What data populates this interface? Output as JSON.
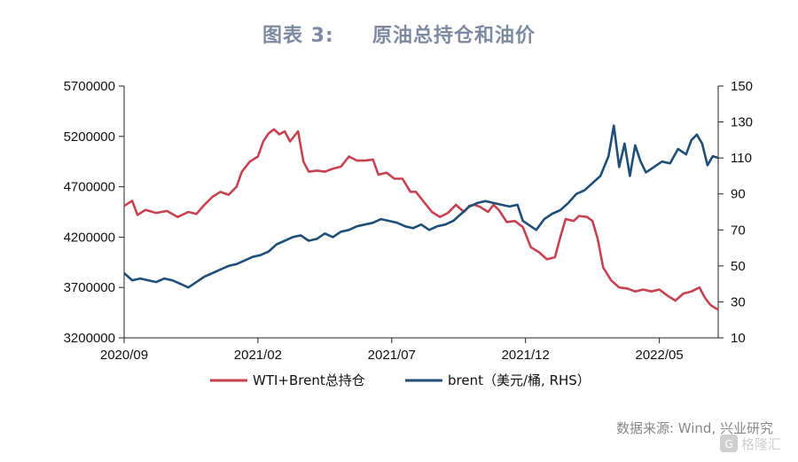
{
  "title": "图表 3:     原油总持仓和油价",
  "source": "数据来源: Wind, 兴业研究",
  "watermark": "格隆汇",
  "chart_data": {
    "type": "line",
    "x_ticks": [
      "2020/09",
      "2021/02",
      "2021/07",
      "2021/12",
      "2022/05"
    ],
    "x_tick_index": [
      0,
      5,
      10,
      15,
      20
    ],
    "x_range": [
      0,
      22.2
    ],
    "y_left": {
      "ticks": [
        "3200000",
        "3700000",
        "4200000",
        "4700000",
        "5200000",
        "5700000"
      ],
      "range": [
        3200000,
        5700000
      ]
    },
    "y_right": {
      "ticks": [
        "10",
        "30",
        "50",
        "70",
        "90",
        "110",
        "130",
        "150"
      ],
      "range": [
        10,
        150
      ]
    },
    "grid": false,
    "legend_position": "bottom",
    "series": [
      {
        "name": "WTI+Brent总持仓",
        "axis": "left",
        "color": "#c8414f",
        "points": [
          [
            0,
            4510000
          ],
          [
            0.3,
            4560000
          ],
          [
            0.5,
            4420000
          ],
          [
            0.8,
            4470000
          ],
          [
            1.2,
            4440000
          ],
          [
            1.6,
            4460000
          ],
          [
            2.0,
            4400000
          ],
          [
            2.4,
            4450000
          ],
          [
            2.7,
            4430000
          ],
          [
            3.0,
            4520000
          ],
          [
            3.3,
            4600000
          ],
          [
            3.6,
            4650000
          ],
          [
            3.9,
            4620000
          ],
          [
            4.2,
            4700000
          ],
          [
            4.4,
            4850000
          ],
          [
            4.7,
            4950000
          ],
          [
            5.0,
            5000000
          ],
          [
            5.2,
            5150000
          ],
          [
            5.4,
            5230000
          ],
          [
            5.6,
            5270000
          ],
          [
            5.8,
            5220000
          ],
          [
            6.0,
            5250000
          ],
          [
            6.2,
            5150000
          ],
          [
            6.5,
            5250000
          ],
          [
            6.7,
            4950000
          ],
          [
            6.9,
            4850000
          ],
          [
            7.2,
            4860000
          ],
          [
            7.5,
            4850000
          ],
          [
            7.8,
            4880000
          ],
          [
            8.1,
            4900000
          ],
          [
            8.4,
            5000000
          ],
          [
            8.7,
            4960000
          ],
          [
            9.0,
            4960000
          ],
          [
            9.3,
            4970000
          ],
          [
            9.5,
            4820000
          ],
          [
            9.8,
            4840000
          ],
          [
            10.1,
            4780000
          ],
          [
            10.4,
            4780000
          ],
          [
            10.7,
            4650000
          ],
          [
            10.9,
            4650000
          ],
          [
            11.2,
            4550000
          ],
          [
            11.5,
            4450000
          ],
          [
            11.8,
            4400000
          ],
          [
            12.1,
            4440000
          ],
          [
            12.4,
            4520000
          ],
          [
            12.7,
            4450000
          ],
          [
            12.9,
            4510000
          ],
          [
            13.1,
            4520000
          ],
          [
            13.3,
            4500000
          ],
          [
            13.6,
            4450000
          ],
          [
            13.8,
            4520000
          ],
          [
            14.0,
            4470000
          ],
          [
            14.3,
            4350000
          ],
          [
            14.6,
            4360000
          ],
          [
            14.9,
            4300000
          ],
          [
            15.2,
            4100000
          ],
          [
            15.5,
            4050000
          ],
          [
            15.8,
            3980000
          ],
          [
            16.1,
            4000000
          ],
          [
            16.3,
            4200000
          ],
          [
            16.5,
            4380000
          ],
          [
            16.8,
            4360000
          ],
          [
            17.0,
            4410000
          ],
          [
            17.3,
            4400000
          ],
          [
            17.5,
            4360000
          ],
          [
            17.7,
            4180000
          ],
          [
            17.9,
            3900000
          ],
          [
            18.2,
            3770000
          ],
          [
            18.5,
            3700000
          ],
          [
            18.8,
            3690000
          ],
          [
            19.1,
            3660000
          ],
          [
            19.4,
            3680000
          ],
          [
            19.7,
            3660000
          ],
          [
            20.0,
            3680000
          ],
          [
            20.3,
            3620000
          ],
          [
            20.6,
            3570000
          ],
          [
            20.9,
            3640000
          ],
          [
            21.2,
            3660000
          ],
          [
            21.5,
            3700000
          ],
          [
            21.7,
            3600000
          ],
          [
            21.9,
            3530000
          ],
          [
            22.0,
            3510000
          ],
          [
            22.2,
            3480000
          ]
        ]
      },
      {
        "name": "brent（美元/桶, RHS）",
        "axis": "right",
        "color": "#1f4e79",
        "points": [
          [
            0,
            46
          ],
          [
            0.3,
            42
          ],
          [
            0.6,
            43
          ],
          [
            0.9,
            42
          ],
          [
            1.2,
            41
          ],
          [
            1.5,
            43
          ],
          [
            1.8,
            42
          ],
          [
            2.1,
            40
          ],
          [
            2.4,
            38
          ],
          [
            2.7,
            41
          ],
          [
            3.0,
            44
          ],
          [
            3.3,
            46
          ],
          [
            3.6,
            48
          ],
          [
            3.9,
            50
          ],
          [
            4.2,
            51
          ],
          [
            4.5,
            53
          ],
          [
            4.8,
            55
          ],
          [
            5.1,
            56
          ],
          [
            5.4,
            58
          ],
          [
            5.7,
            62
          ],
          [
            6.0,
            64
          ],
          [
            6.3,
            66
          ],
          [
            6.6,
            67
          ],
          [
            6.9,
            64
          ],
          [
            7.2,
            65
          ],
          [
            7.5,
            68
          ],
          [
            7.8,
            66
          ],
          [
            8.1,
            69
          ],
          [
            8.4,
            70
          ],
          [
            8.7,
            72
          ],
          [
            9.0,
            73
          ],
          [
            9.3,
            74
          ],
          [
            9.6,
            76
          ],
          [
            9.9,
            75
          ],
          [
            10.2,
            74
          ],
          [
            10.5,
            72
          ],
          [
            10.8,
            71
          ],
          [
            11.1,
            73
          ],
          [
            11.4,
            70
          ],
          [
            11.7,
            72
          ],
          [
            12.0,
            73
          ],
          [
            12.3,
            75
          ],
          [
            12.6,
            79
          ],
          [
            12.9,
            83
          ],
          [
            13.2,
            85
          ],
          [
            13.5,
            86
          ],
          [
            13.8,
            85
          ],
          [
            14.1,
            84
          ],
          [
            14.4,
            83
          ],
          [
            14.7,
            84
          ],
          [
            14.9,
            75
          ],
          [
            15.1,
            73
          ],
          [
            15.4,
            70
          ],
          [
            15.7,
            76
          ],
          [
            16.0,
            79
          ],
          [
            16.3,
            81
          ],
          [
            16.6,
            85
          ],
          [
            16.9,
            90
          ],
          [
            17.2,
            92
          ],
          [
            17.5,
            96
          ],
          [
            17.8,
            100
          ],
          [
            18.1,
            111
          ],
          [
            18.3,
            128
          ],
          [
            18.5,
            105
          ],
          [
            18.7,
            118
          ],
          [
            18.9,
            100
          ],
          [
            19.1,
            117
          ],
          [
            19.3,
            108
          ],
          [
            19.5,
            102
          ],
          [
            19.8,
            105
          ],
          [
            20.1,
            108
          ],
          [
            20.4,
            107
          ],
          [
            20.7,
            115
          ],
          [
            21.0,
            112
          ],
          [
            21.2,
            120
          ],
          [
            21.4,
            123
          ],
          [
            21.6,
            118
          ],
          [
            21.8,
            106
          ],
          [
            22.0,
            111
          ],
          [
            22.2,
            110
          ]
        ]
      }
    ]
  }
}
